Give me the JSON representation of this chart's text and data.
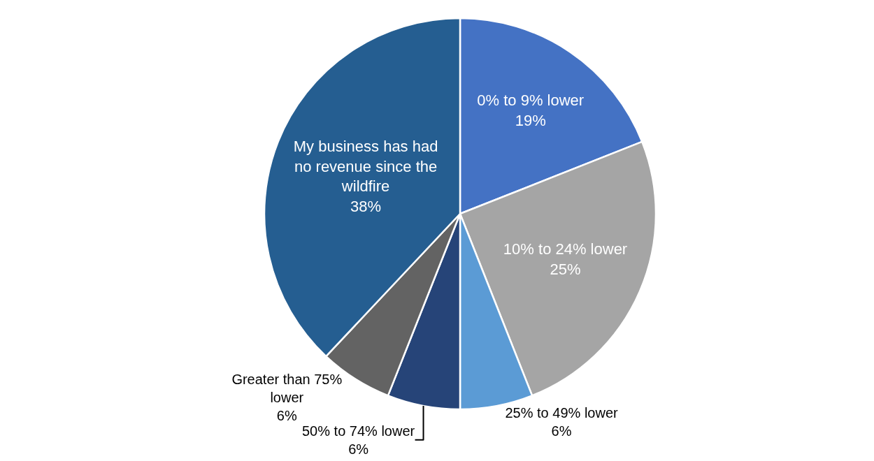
{
  "chart_data": {
    "type": "pie",
    "categories": [
      "0% to 9% lower",
      "10% to 24% lower",
      "25% to 49% lower",
      "50% to 74% lower",
      "Greater than 75% lower",
      "My business has had no revenue since the wildfire"
    ],
    "values": [
      19,
      25,
      6,
      6,
      6,
      38
    ],
    "colors": [
      "#4472c4",
      "#a5a5a5",
      "#5b9bd5",
      "#264478",
      "#636363",
      "#255e91"
    ],
    "value_labels": [
      "19%",
      "25%",
      "6%",
      "6%",
      "6%",
      "38%"
    ]
  }
}
